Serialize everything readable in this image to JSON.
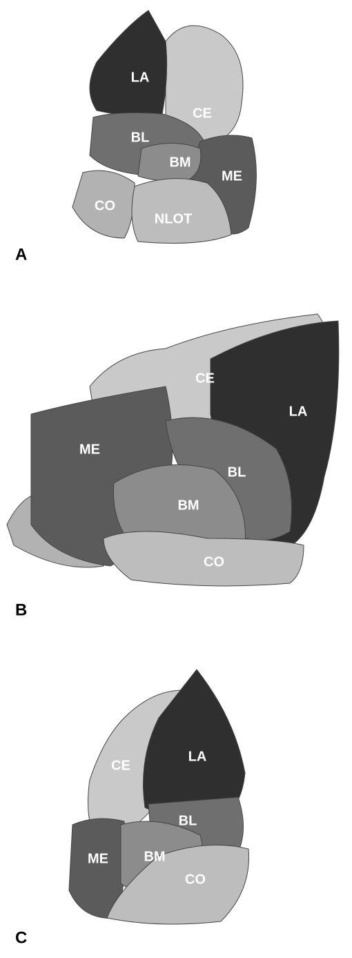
{
  "panels": [
    {
      "label": "A",
      "regions": [
        "LA",
        "CE",
        "BL",
        "BM",
        "ME",
        "CO",
        "NLOT"
      ]
    },
    {
      "label": "B",
      "regions": [
        "CE",
        "LA",
        "ME",
        "BL",
        "BM",
        "CO"
      ]
    },
    {
      "label": "C",
      "regions": [
        "CE",
        "LA",
        "BL",
        "ME",
        "BM",
        "CO"
      ]
    }
  ]
}
